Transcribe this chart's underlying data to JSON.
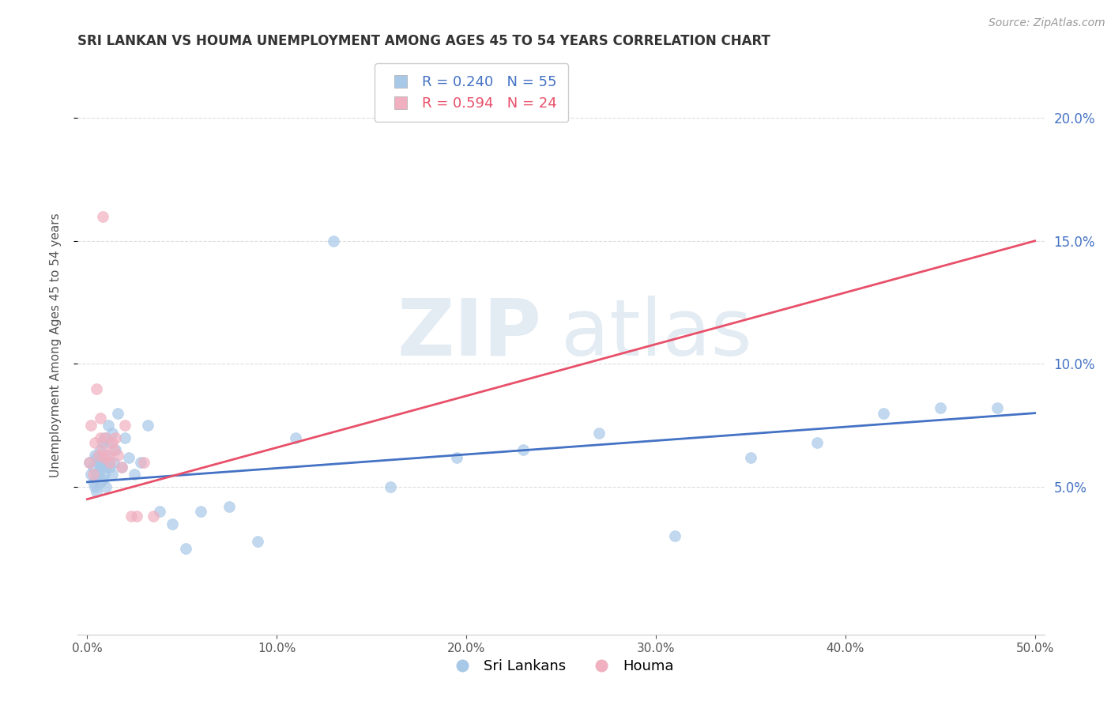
{
  "title": "SRI LANKAN VS HOUMA UNEMPLOYMENT AMONG AGES 45 TO 54 YEARS CORRELATION CHART",
  "source": "Source: ZipAtlas.com",
  "ylabel": "Unemployment Among Ages 45 to 54 years",
  "xlim": [
    -0.005,
    0.505
  ],
  "ylim": [
    -0.01,
    0.225
  ],
  "xticks": [
    0.0,
    0.1,
    0.2,
    0.3,
    0.4,
    0.5
  ],
  "yticks": [
    0.05,
    0.1,
    0.15,
    0.2
  ],
  "sri_lankans_x": [
    0.001,
    0.002,
    0.003,
    0.003,
    0.004,
    0.004,
    0.005,
    0.005,
    0.005,
    0.006,
    0.006,
    0.007,
    0.007,
    0.007,
    0.008,
    0.008,
    0.008,
    0.009,
    0.009,
    0.01,
    0.01,
    0.01,
    0.011,
    0.011,
    0.012,
    0.012,
    0.013,
    0.013,
    0.014,
    0.015,
    0.016,
    0.018,
    0.02,
    0.022,
    0.025,
    0.028,
    0.032,
    0.038,
    0.045,
    0.052,
    0.06,
    0.075,
    0.09,
    0.11,
    0.13,
    0.16,
    0.195,
    0.23,
    0.27,
    0.31,
    0.35,
    0.385,
    0.42,
    0.45,
    0.48
  ],
  "sri_lankans_y": [
    0.06,
    0.055,
    0.052,
    0.058,
    0.05,
    0.063,
    0.048,
    0.055,
    0.062,
    0.056,
    0.06,
    0.058,
    0.052,
    0.065,
    0.053,
    0.06,
    0.068,
    0.055,
    0.07,
    0.058,
    0.05,
    0.063,
    0.06,
    0.075,
    0.058,
    0.068,
    0.055,
    0.072,
    0.06,
    0.065,
    0.08,
    0.058,
    0.07,
    0.062,
    0.055,
    0.06,
    0.075,
    0.04,
    0.035,
    0.025,
    0.04,
    0.042,
    0.028,
    0.07,
    0.15,
    0.05,
    0.062,
    0.065,
    0.072,
    0.03,
    0.062,
    0.068,
    0.08,
    0.082,
    0.082
  ],
  "houma_x": [
    0.001,
    0.002,
    0.003,
    0.004,
    0.005,
    0.006,
    0.007,
    0.007,
    0.008,
    0.008,
    0.009,
    0.01,
    0.011,
    0.012,
    0.013,
    0.014,
    0.015,
    0.016,
    0.018,
    0.02,
    0.023,
    0.026,
    0.03,
    0.035
  ],
  "houma_y": [
    0.06,
    0.075,
    0.055,
    0.068,
    0.09,
    0.063,
    0.07,
    0.078,
    0.065,
    0.16,
    0.062,
    0.07,
    0.063,
    0.06,
    0.068,
    0.065,
    0.07,
    0.063,
    0.058,
    0.075,
    0.038,
    0.038,
    0.06,
    0.038
  ],
  "sri_line_x": [
    0.0,
    0.5
  ],
  "sri_line_y": [
    0.052,
    0.08
  ],
  "houma_line_x": [
    0.0,
    0.5
  ],
  "houma_line_y": [
    0.045,
    0.15
  ],
  "sri_color": "#a8c8e8",
  "houma_color": "#f0b0c0",
  "sri_line_color": "#4472c4",
  "houma_line_color": "#e8506a",
  "legend_sri_r": "R = 0.240",
  "legend_sri_n": "N = 55",
  "legend_houma_r": "R = 0.594",
  "legend_houma_n": "N = 24",
  "watermark_zip": "ZIP",
  "watermark_atlas": "atlas",
  "background_color": "#ffffff",
  "grid_color": "#dddddd"
}
